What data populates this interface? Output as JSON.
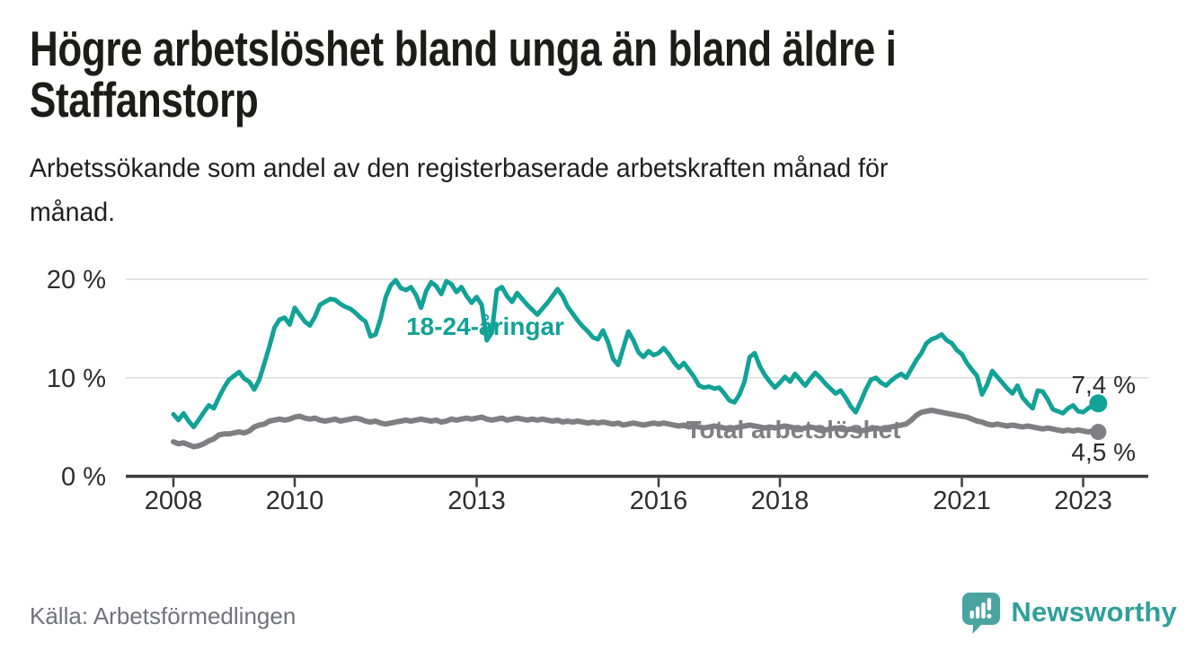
{
  "header": {
    "title_line1": "Högre arbetslöshet bland unga än bland äldre i",
    "title_line2": "Staffanstorp",
    "subtitle_line1": "Arbetssökande som andel av den registerbaserade arbetskraften månad för",
    "subtitle_line2": "månad."
  },
  "footer": {
    "source": "Källa: Arbetsförmedlingen",
    "brand": "Newsworthy"
  },
  "colors": {
    "youth_line": "#12a296",
    "total_line": "#7f7f83",
    "axis": "#3c3c3c",
    "grid": "#dcdcdc",
    "value_label": "#2b2b2b",
    "brand_teal": "#2f9f99",
    "logo_mark": "#4aa5a0"
  },
  "chart_data": {
    "type": "line",
    "title": "Högre arbetslöshet bland unga än bland äldre i Staffanstorp",
    "subtitle": "Arbetssökande som andel av den registerbaserade arbetskraften månad för månad.",
    "x_unit": "month",
    "x_start": "2008-01",
    "x_end": "2023-04",
    "ylim": [
      0,
      21
    ],
    "grid": "horizontal",
    "legend_position": "inline-labels",
    "y_ticks": [
      {
        "label": "0 %",
        "value": 0
      },
      {
        "label": "10 %",
        "value": 10
      },
      {
        "label": "20 %",
        "value": 20
      }
    ],
    "x_ticks": [
      {
        "label": "2008",
        "year": 2008
      },
      {
        "label": "2010",
        "year": 2010
      },
      {
        "label": "2013",
        "year": 2013
      },
      {
        "label": "2016",
        "year": 2016
      },
      {
        "label": "2018",
        "year": 2018
      },
      {
        "label": "2021",
        "year": 2021
      },
      {
        "label": "2023",
        "year": 2023
      }
    ],
    "series": [
      {
        "name": "18-24-åringar",
        "color": "#12a296",
        "end_label": "7,4 %",
        "end_value": 7.4,
        "values": [
          6.3,
          5.7,
          6.4,
          5.6,
          5.0,
          5.7,
          6.5,
          7.2,
          6.9,
          8.0,
          9.0,
          9.8,
          10.2,
          10.6,
          9.9,
          9.6,
          8.8,
          9.8,
          11.5,
          13.2,
          15.1,
          15.9,
          16.1,
          15.4,
          17.1,
          16.4,
          15.7,
          15.3,
          16.2,
          17.4,
          17.7,
          18.0,
          17.9,
          17.5,
          17.2,
          17.0,
          16.6,
          16.1,
          15.7,
          14.2,
          14.4,
          16.0,
          18.2,
          19.4,
          19.9,
          19.1,
          18.9,
          19.2,
          18.4,
          17.1,
          18.8,
          19.7,
          19.3,
          18.5,
          19.8,
          19.5,
          18.7,
          19.2,
          18.3,
          17.6,
          18.2,
          17.4,
          13.8,
          14.6,
          18.9,
          19.2,
          18.3,
          17.7,
          18.6,
          18.0,
          17.4,
          16.9,
          16.4,
          17.0,
          17.6,
          18.3,
          19.0,
          18.3,
          17.2,
          16.5,
          15.8,
          15.2,
          14.7,
          14.1,
          13.9,
          14.8,
          13.6,
          11.9,
          11.3,
          13.0,
          14.7,
          13.8,
          12.6,
          12.1,
          12.7,
          12.3,
          12.5,
          13.0,
          12.4,
          11.6,
          11.0,
          11.5,
          10.8,
          10.1,
          9.2,
          9.0,
          9.1,
          8.9,
          9.0,
          8.4,
          7.7,
          7.5,
          8.3,
          9.6,
          12.1,
          12.5,
          11.2,
          10.3,
          9.6,
          9.0,
          9.5,
          10.1,
          9.6,
          10.4,
          9.8,
          9.2,
          9.9,
          10.5,
          10.0,
          9.4,
          8.9,
          8.4,
          8.7,
          8.0,
          7.1,
          6.5,
          7.6,
          8.8,
          9.8,
          10.0,
          9.5,
          9.2,
          9.7,
          10.1,
          10.4,
          10.0,
          10.9,
          11.8,
          12.5,
          13.5,
          13.9,
          14.1,
          14.4,
          13.8,
          13.5,
          12.8,
          12.4,
          11.5,
          10.8,
          10.2,
          8.3,
          9.3,
          10.7,
          10.1,
          9.5,
          8.9,
          8.4,
          9.2,
          8.0,
          7.4,
          6.9,
          8.7,
          8.6,
          7.8,
          6.8,
          6.6,
          6.4,
          6.9,
          7.2,
          6.6,
          6.5,
          6.9,
          7.2,
          7.4
        ]
      },
      {
        "name": "Total arbetslöshet",
        "color": "#7f7f83",
        "end_label": "4,5 %",
        "end_value": 4.5,
        "values": [
          3.5,
          3.3,
          3.4,
          3.2,
          3.0,
          3.1,
          3.3,
          3.6,
          3.8,
          4.2,
          4.3,
          4.3,
          4.4,
          4.5,
          4.4,
          4.6,
          5.0,
          5.2,
          5.3,
          5.6,
          5.7,
          5.8,
          5.7,
          5.8,
          6.0,
          6.1,
          5.9,
          5.8,
          5.9,
          5.7,
          5.6,
          5.7,
          5.8,
          5.6,
          5.7,
          5.8,
          5.9,
          5.8,
          5.6,
          5.5,
          5.6,
          5.4,
          5.3,
          5.4,
          5.5,
          5.6,
          5.7,
          5.6,
          5.7,
          5.8,
          5.7,
          5.6,
          5.7,
          5.5,
          5.6,
          5.8,
          5.7,
          5.8,
          5.9,
          5.8,
          5.9,
          6.0,
          5.8,
          5.7,
          5.8,
          5.9,
          5.7,
          5.8,
          5.9,
          5.8,
          5.7,
          5.8,
          5.7,
          5.8,
          5.7,
          5.6,
          5.7,
          5.5,
          5.6,
          5.5,
          5.6,
          5.5,
          5.4,
          5.5,
          5.4,
          5.5,
          5.4,
          5.3,
          5.4,
          5.2,
          5.3,
          5.4,
          5.3,
          5.2,
          5.3,
          5.4,
          5.3,
          5.4,
          5.3,
          5.2,
          5.1,
          5.2,
          5.0,
          5.1,
          5.0,
          4.9,
          5.0,
          5.1,
          5.0,
          4.9,
          4.8,
          4.9,
          5.0,
          5.1,
          5.2,
          5.1,
          5.0,
          4.9,
          5.0,
          4.9,
          5.0,
          5.1,
          5.0,
          4.9,
          4.8,
          4.9,
          5.0,
          4.9,
          4.8,
          4.7,
          4.8,
          4.9,
          4.8,
          4.7,
          4.8,
          4.7,
          4.6,
          4.7,
          4.8,
          4.9,
          4.8,
          4.9,
          5.0,
          5.1,
          5.2,
          5.3,
          5.7,
          6.2,
          6.5,
          6.6,
          6.7,
          6.6,
          6.5,
          6.4,
          6.3,
          6.2,
          6.1,
          6.0,
          5.8,
          5.6,
          5.5,
          5.3,
          5.2,
          5.3,
          5.2,
          5.1,
          5.2,
          5.1,
          5.0,
          5.1,
          5.0,
          4.9,
          4.8,
          4.9,
          4.8,
          4.7,
          4.6,
          4.7,
          4.6,
          4.7,
          4.6,
          4.5,
          4.6,
          4.5
        ]
      }
    ]
  }
}
